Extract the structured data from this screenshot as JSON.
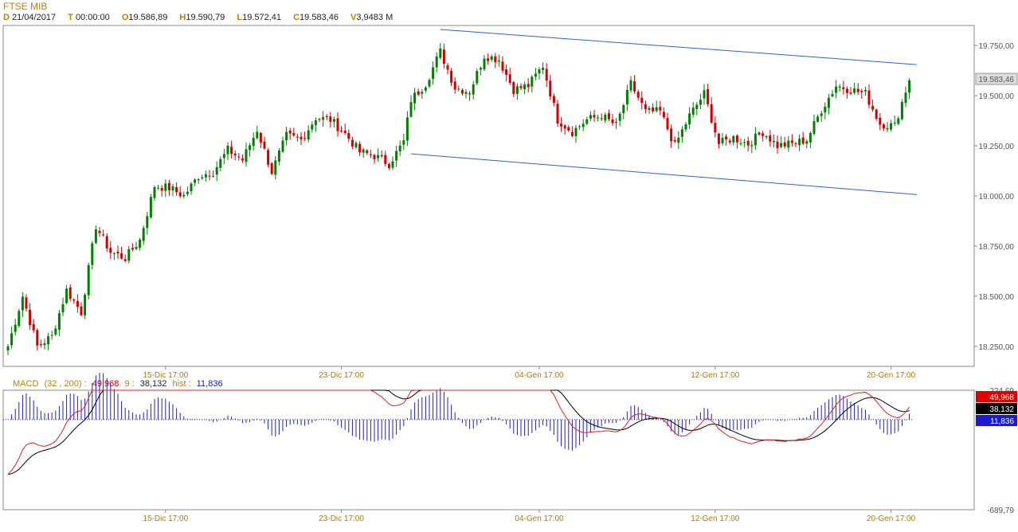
{
  "header": {
    "title": "FTSE MIB",
    "ohlc": [
      {
        "key": "D",
        "val": "21/04/2017"
      },
      {
        "key": "T",
        "val": "00:00:00"
      },
      {
        "key": "O",
        "val": "19.586,89"
      },
      {
        "key": "H",
        "val": "19.590,79"
      },
      {
        "key": "L",
        "val": "19.572,41"
      },
      {
        "key": "C",
        "val": "19.583,46"
      },
      {
        "key": "V",
        "val": "3,9483 M"
      }
    ]
  },
  "macd_header": {
    "name": "MACD",
    "params": "(32 , 200) :",
    "macd_value": "49,968",
    "signal_label": "9 :",
    "signal_value": "38,132",
    "hist_label": "hist :",
    "hist_value": "11,836"
  },
  "colors": {
    "up": "#008000",
    "down": "#d00000",
    "channel": "#3060d0",
    "macd": "#e02020",
    "signal": "#000000",
    "hist": "#2020c0",
    "date_text": "#b07a00"
  },
  "chart_data": [
    {
      "type": "candlestick",
      "title": "FTSE MIB",
      "x_ticks": [
        "15-Dic 17:00",
        "23-Dic 17:00",
        "04-Gen 17:00",
        "12-Gen 17:00",
        "20-Gen 17:00"
      ],
      "y_ticks": [
        "19.750,00",
        "19.500,00",
        "19.250,00",
        "19.000,00",
        "18.750,00",
        "18.500,00",
        "18.250,00"
      ],
      "ylim": [
        18150,
        19850
      ],
      "last_price_label": "19.583,46",
      "close_path": [
        [
          0,
          18250
        ],
        [
          4,
          18500
        ],
        [
          8,
          18250
        ],
        [
          12,
          18300
        ],
        [
          16,
          18530
        ],
        [
          20,
          18420
        ],
        [
          24,
          18850
        ],
        [
          28,
          18720
        ],
        [
          32,
          18690
        ],
        [
          36,
          18780
        ],
        [
          40,
          19050
        ],
        [
          44,
          19040
        ],
        [
          48,
          19000
        ],
        [
          52,
          19100
        ],
        [
          56,
          19120
        ],
        [
          60,
          19230
        ],
        [
          64,
          19180
        ],
        [
          68,
          19330
        ],
        [
          72,
          19120
        ],
        [
          76,
          19300
        ],
        [
          80,
          19280
        ],
        [
          84,
          19390
        ],
        [
          88,
          19380
        ],
        [
          92,
          19310
        ],
        [
          96,
          19220
        ],
        [
          100,
          19200
        ],
        [
          104,
          19160
        ],
        [
          108,
          19270
        ],
        [
          110,
          19480
        ],
        [
          114,
          19560
        ],
        [
          118,
          19720
        ],
        [
          122,
          19540
        ],
        [
          126,
          19520
        ],
        [
          130,
          19700
        ],
        [
          134,
          19680
        ],
        [
          138,
          19530
        ],
        [
          142,
          19550
        ],
        [
          146,
          19650
        ],
        [
          150,
          19380
        ],
        [
          154,
          19320
        ],
        [
          158,
          19380
        ],
        [
          162,
          19400
        ],
        [
          166,
          19350
        ],
        [
          170,
          19560
        ],
        [
          174,
          19420
        ],
        [
          178,
          19420
        ],
        [
          182,
          19250
        ],
        [
          186,
          19400
        ],
        [
          190,
          19510
        ],
        [
          194,
          19260
        ],
        [
          198,
          19290
        ],
        [
          202,
          19260
        ],
        [
          206,
          19320
        ],
        [
          210,
          19250
        ],
        [
          214,
          19260
        ],
        [
          218,
          19280
        ],
        [
          222,
          19430
        ],
        [
          226,
          19550
        ],
        [
          230,
          19530
        ],
        [
          234,
          19510
        ],
        [
          238,
          19360
        ],
        [
          242,
          19350
        ],
        [
          246,
          19583.46
        ]
      ],
      "channel_upper": [
        [
          118,
          19830
        ],
        [
          248,
          19655
        ]
      ],
      "channel_lower": [
        [
          110,
          19210
        ],
        [
          248,
          19007
        ]
      ]
    },
    {
      "type": "line",
      "title": "MACD",
      "series_names": [
        "MACD (32 , 200)",
        "signal 9",
        "hist"
      ],
      "ylim": [
        -689.79,
        224.69
      ],
      "y_ticks": [
        "224,69",
        "-689,79"
      ],
      "values_last": {
        "macd": 49.968,
        "signal": 38.132,
        "hist": 11.836
      },
      "x_ticks": [
        "15-Dic 17:00",
        "23-Dic 17:00",
        "04-Gen 17:00",
        "12-Gen 17:00",
        "20-Gen 17:00"
      ]
    }
  ]
}
